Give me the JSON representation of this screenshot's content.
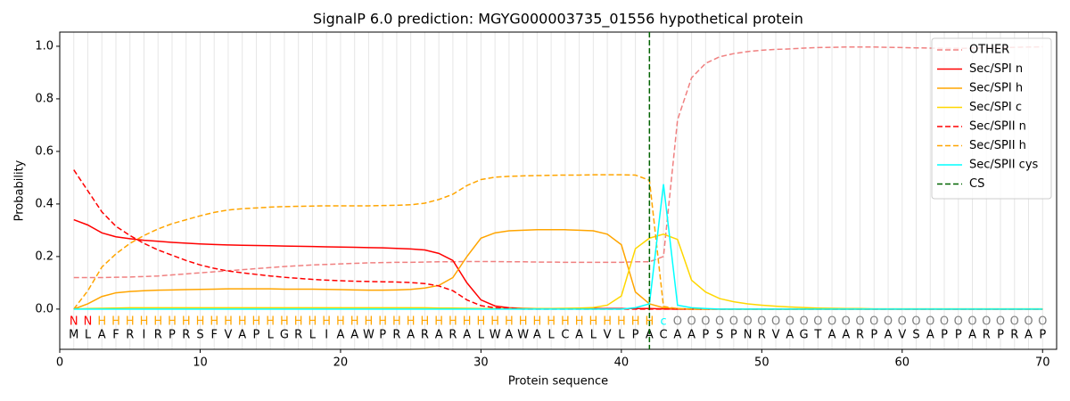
{
  "chart_data": {
    "type": "line",
    "title": "SignalP 6.0 prediction: MGYG000003735_01556 hypothetical protein",
    "xlabel": "Protein sequence",
    "ylabel": "Probability",
    "x": [
      1,
      2,
      3,
      4,
      5,
      6,
      7,
      8,
      9,
      10,
      11,
      12,
      13,
      14,
      15,
      16,
      17,
      18,
      19,
      20,
      21,
      22,
      23,
      24,
      25,
      26,
      27,
      28,
      29,
      30,
      31,
      32,
      33,
      34,
      35,
      36,
      37,
      38,
      39,
      40,
      41,
      42,
      43,
      44,
      45,
      46,
      47,
      48,
      49,
      50,
      51,
      52,
      53,
      54,
      55,
      56,
      57,
      58,
      59,
      60,
      61,
      62,
      63,
      64,
      65,
      66,
      67,
      68,
      69,
      70
    ],
    "xlim": [
      0,
      71
    ],
    "ylim": [
      -0.153,
      1.054
    ],
    "xticks": [
      0,
      10,
      20,
      30,
      40,
      50,
      60,
      70
    ],
    "yticks": [
      {
        "value": 0,
        "label": "0.0"
      },
      {
        "value": 0.2,
        "label": "0.2"
      },
      {
        "value": 0.4,
        "label": "0.4"
      },
      {
        "value": 0.6,
        "label": "0.6"
      },
      {
        "value": 0.8,
        "label": "0.8"
      },
      {
        "value": 1,
        "label": "1.0"
      }
    ],
    "legend": "upper right",
    "series": [
      {
        "name": "OTHER",
        "color": "#f08080",
        "linestyle": "dashed",
        "values": [
          0.12,
          0.12,
          0.12,
          0.121,
          0.122,
          0.124,
          0.126,
          0.13,
          0.134,
          0.138,
          0.142,
          0.146,
          0.15,
          0.154,
          0.158,
          0.162,
          0.165,
          0.168,
          0.17,
          0.172,
          0.174,
          0.176,
          0.177,
          0.178,
          0.178,
          0.179,
          0.18,
          0.18,
          0.181,
          0.181,
          0.181,
          0.18,
          0.18,
          0.179,
          0.179,
          0.178,
          0.178,
          0.178,
          0.178,
          0.178,
          0.18,
          0.18,
          0.2,
          0.72,
          0.88,
          0.935,
          0.96,
          0.972,
          0.98,
          0.985,
          0.988,
          0.99,
          0.993,
          0.995,
          0.996,
          0.997,
          0.997,
          0.997,
          0.996,
          0.995,
          0.994,
          0.993,
          0.992,
          0.992,
          0.993,
          0.994,
          0.995,
          0.996,
          0.997,
          0.998
        ]
      },
      {
        "name": "Sec/SPI n",
        "color": "#ff0000",
        "linestyle": "solid",
        "values": [
          0.34,
          0.32,
          0.29,
          0.275,
          0.268,
          0.262,
          0.258,
          0.254,
          0.251,
          0.248,
          0.246,
          0.244,
          0.243,
          0.242,
          0.241,
          0.24,
          0.239,
          0.238,
          0.237,
          0.236,
          0.235,
          0.234,
          0.233,
          0.231,
          0.229,
          0.225,
          0.212,
          0.185,
          0.1,
          0.035,
          0.012,
          0.005,
          0.003,
          0.002,
          0.002,
          0.002,
          0.002,
          0.002,
          0.002,
          0.002,
          0.002,
          0.002,
          0.001,
          0,
          0,
          0,
          0,
          0,
          0,
          0,
          0,
          0,
          0,
          0,
          0,
          0,
          0,
          0,
          0,
          0,
          0,
          0,
          0,
          0,
          0,
          0,
          0,
          0,
          0,
          0
        ]
      },
      {
        "name": "Sec/SPI h",
        "color": "#ffa500",
        "linestyle": "solid",
        "values": [
          0,
          0.02,
          0.048,
          0.062,
          0.067,
          0.07,
          0.072,
          0.073,
          0.074,
          0.075,
          0.076,
          0.077,
          0.077,
          0.077,
          0.077,
          0.076,
          0.076,
          0.076,
          0.075,
          0.074,
          0.073,
          0.072,
          0.072,
          0.073,
          0.075,
          0.08,
          0.09,
          0.12,
          0.2,
          0.27,
          0.29,
          0.298,
          0.3,
          0.302,
          0.302,
          0.302,
          0.3,
          0.298,
          0.285,
          0.245,
          0.065,
          0.02,
          0.005,
          0.002,
          0,
          0,
          0,
          0,
          0,
          0,
          0,
          0,
          0,
          0,
          0,
          0,
          0,
          0,
          0,
          0,
          0,
          0,
          0,
          0,
          0,
          0,
          0,
          0,
          0,
          0
        ]
      },
      {
        "name": "Sec/SPI c",
        "color": "#ffd700",
        "linestyle": "solid",
        "values": [
          0,
          0.002,
          0.003,
          0.004,
          0.005,
          0.005,
          0.005,
          0.005,
          0.005,
          0.005,
          0.005,
          0.005,
          0.005,
          0.005,
          0.005,
          0.005,
          0.005,
          0.005,
          0.005,
          0.005,
          0.005,
          0.005,
          0.005,
          0.005,
          0.005,
          0.005,
          0.004,
          0.004,
          0.003,
          0.002,
          0.002,
          0.002,
          0.002,
          0.002,
          0.002,
          0.003,
          0.004,
          0.006,
          0.015,
          0.05,
          0.23,
          0.27,
          0.285,
          0.265,
          0.11,
          0.065,
          0.04,
          0.028,
          0.02,
          0.015,
          0.011,
          0.008,
          0.006,
          0.004,
          0.003,
          0.002,
          0.002,
          0.001,
          0.001,
          0.001,
          0.001,
          0.001,
          0.001,
          0.001,
          0.001,
          0.001,
          0.001,
          0.001,
          0.001,
          0.001
        ]
      },
      {
        "name": "Sec/SPII n",
        "color": "#ff0000",
        "linestyle": "dashed",
        "values": [
          0.53,
          0.45,
          0.37,
          0.315,
          0.28,
          0.25,
          0.225,
          0.205,
          0.185,
          0.168,
          0.155,
          0.145,
          0.138,
          0.132,
          0.126,
          0.121,
          0.117,
          0.113,
          0.11,
          0.108,
          0.106,
          0.105,
          0.104,
          0.103,
          0.101,
          0.097,
          0.088,
          0.07,
          0.035,
          0.013,
          0.005,
          0.002,
          0,
          0,
          0,
          0,
          0,
          0,
          0,
          0,
          0,
          0,
          0,
          0,
          0,
          0,
          0,
          0,
          0,
          0,
          0,
          0,
          0,
          0,
          0,
          0,
          0,
          0,
          0,
          0,
          0,
          0,
          0,
          0,
          0,
          0,
          0,
          0,
          0,
          0
        ]
      },
      {
        "name": "Sec/SPII h",
        "color": "#ffa500",
        "linestyle": "dashed",
        "values": [
          0,
          0.07,
          0.16,
          0.21,
          0.25,
          0.28,
          0.305,
          0.325,
          0.34,
          0.355,
          0.368,
          0.377,
          0.382,
          0.385,
          0.388,
          0.39,
          0.391,
          0.392,
          0.393,
          0.393,
          0.393,
          0.393,
          0.394,
          0.395,
          0.397,
          0.403,
          0.417,
          0.437,
          0.47,
          0.493,
          0.502,
          0.505,
          0.507,
          0.508,
          0.509,
          0.51,
          0.51,
          0.511,
          0.511,
          0.511,
          0.51,
          0.49,
          0.01,
          0.002,
          0,
          0,
          0,
          0,
          0,
          0,
          0,
          0,
          0,
          0,
          0,
          0,
          0,
          0,
          0,
          0,
          0,
          0,
          0,
          0,
          0,
          0,
          0,
          0,
          0,
          0
        ]
      },
      {
        "name": "Sec/SPII cys",
        "color": "#00ffff",
        "linestyle": "solid",
        "values": [
          0,
          0,
          0,
          0,
          0,
          0,
          0,
          0,
          0,
          0,
          0,
          0,
          0,
          0,
          0,
          0,
          0,
          0,
          0,
          0,
          0,
          0,
          0,
          0,
          0,
          0,
          0,
          0,
          0,
          0,
          0,
          0,
          0,
          0,
          0,
          0,
          0,
          0,
          0,
          0,
          0.005,
          0.02,
          0.475,
          0.015,
          0.005,
          0.002,
          0,
          0,
          0,
          0,
          0,
          0,
          0,
          0,
          0,
          0,
          0,
          0,
          0,
          0,
          0,
          0,
          0,
          0,
          0,
          0,
          0,
          0,
          0,
          0
        ]
      }
    ],
    "cleavage_site": {
      "name": "CS",
      "x": 42,
      "color": "#006400",
      "linestyle": "dashed"
    },
    "sequence": [
      "M",
      "L",
      "A",
      "F",
      "R",
      "I",
      "R",
      "P",
      "R",
      "S",
      "F",
      "V",
      "A",
      "P",
      "L",
      "G",
      "R",
      "L",
      "I",
      "A",
      "A",
      "W",
      "P",
      "R",
      "A",
      "R",
      "A",
      "R",
      "A",
      "L",
      "W",
      "A",
      "W",
      "A",
      "L",
      "C",
      "A",
      "L",
      "V",
      "L",
      "P",
      "A",
      "C",
      "A",
      "A",
      "P",
      "S",
      "P",
      "N",
      "R",
      "V",
      "A",
      "G",
      "T",
      "A",
      "A",
      "R",
      "P",
      "A",
      "V",
      "S",
      "A",
      "P",
      "P",
      "A",
      "R",
      "P",
      "R",
      "A",
      "P"
    ],
    "regions": [
      "N",
      "N",
      "H",
      "H",
      "H",
      "H",
      "H",
      "H",
      "H",
      "H",
      "H",
      "H",
      "H",
      "H",
      "H",
      "H",
      "H",
      "H",
      "H",
      "H",
      "H",
      "H",
      "H",
      "H",
      "H",
      "H",
      "H",
      "H",
      "H",
      "H",
      "H",
      "H",
      "H",
      "H",
      "H",
      "H",
      "H",
      "H",
      "H",
      "H",
      "H",
      "H",
      "c",
      "O",
      "O",
      "O",
      "O",
      "O",
      "O",
      "O",
      "O",
      "O",
      "O",
      "O",
      "O",
      "O",
      "O",
      "O",
      "O",
      "O",
      "O",
      "O",
      "O",
      "O",
      "O",
      "O",
      "O",
      "O",
      "O",
      "O"
    ],
    "region_colors": {
      "N": "#ff0000",
      "H": "#ffa500",
      "c": "#00ffff",
      "O": "#808080"
    }
  }
}
